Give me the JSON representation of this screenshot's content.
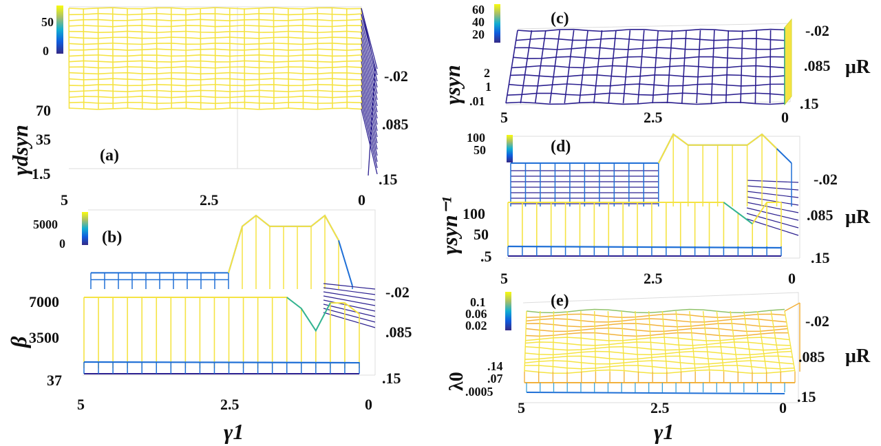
{
  "figure": {
    "xlabel": "γ1",
    "mu_label": "μR"
  },
  "chart_data": [
    {
      "panel": "(a)",
      "type": "mesh3d",
      "zlabel": "γdsyn",
      "x_axis": {
        "label": "γ1",
        "ticks": [
          "5",
          "2.5",
          "0"
        ],
        "range": [
          5,
          0
        ]
      },
      "y_axis": {
        "label": "",
        "ticks": [
          "-.02",
          ".085",
          ".15"
        ],
        "range": [
          -0.02,
          0.15
        ]
      },
      "z_axis": {
        "ticks": [
          "1.5",
          "35",
          "70"
        ],
        "range": [
          1.5,
          70
        ]
      },
      "colorbar": {
        "ticks": [
          "0",
          "50"
        ],
        "range": [
          0,
          60
        ]
      },
      "surface_value": 70,
      "drop_at_gamma0": true
    },
    {
      "panel": "(b)",
      "type": "mesh3d",
      "zlabel": "β",
      "x_axis": {
        "label": "γ1",
        "ticks": [
          "5",
          "2.5",
          "0"
        ],
        "range": [
          5,
          0
        ]
      },
      "y_axis": {
        "label": "",
        "ticks": [
          "-.02",
          ".085",
          ".15"
        ],
        "range": [
          -0.02,
          0.15
        ]
      },
      "z_axis": {
        "ticks": [
          "37",
          "3500",
          "7000"
        ],
        "range": [
          37,
          7000
        ]
      },
      "colorbar": {
        "ticks": [
          "0",
          "5000"
        ],
        "range": [
          0,
          6000
        ]
      },
      "front_row": [
        7000,
        7000,
        7000,
        7000,
        7000,
        7000,
        7000,
        7000,
        7000,
        7000,
        7000,
        7000,
        7000,
        7000,
        7000,
        6000,
        4000,
        6500,
        6500,
        5500
      ],
      "back_row": [
        1500,
        1500,
        1500,
        1500,
        1500,
        1500,
        1500,
        1500,
        1500,
        1500,
        1500,
        5800,
        6800,
        5800,
        5800,
        5800,
        5800,
        6800,
        4500,
        300
      ]
    },
    {
      "panel": "(c)",
      "type": "mesh3d",
      "zlabel": "γsyn",
      "x_axis": {
        "label": "",
        "ticks": [
          "5",
          "2.5",
          "0"
        ],
        "range": [
          5,
          0
        ]
      },
      "y_axis": {
        "label": "μR",
        "ticks": [
          "-.02",
          ".085",
          ".15"
        ],
        "range": [
          -0.02,
          0.15
        ]
      },
      "z_axis": {
        "ticks": [
          ".01",
          "1",
          "2"
        ],
        "range": [
          0.01,
          2
        ]
      },
      "colorbar": {
        "ticks": [
          "20",
          "40",
          "60"
        ],
        "range": [
          10,
          65
        ]
      },
      "spike_at_gamma0": true
    },
    {
      "panel": "(d)",
      "type": "mesh3d",
      "zlabel": "γsyn⁻¹",
      "x_axis": {
        "label": "",
        "ticks": [
          "5",
          "2.5",
          "0"
        ],
        "range": [
          5,
          0
        ]
      },
      "y_axis": {
        "label": "μR",
        "ticks": [
          "-.02",
          ".085",
          ".15"
        ],
        "range": [
          -0.02,
          0.15
        ]
      },
      "z_axis": {
        "ticks": [
          ".5",
          "50",
          "100"
        ],
        "range": [
          0.5,
          100
        ]
      },
      "colorbar": {
        "ticks": [
          "50",
          "100"
        ],
        "range": [
          0,
          110
        ]
      }
    },
    {
      "panel": "(e)",
      "type": "mesh3d",
      "zlabel": "λ0",
      "x_axis": {
        "label": "γ1",
        "ticks": [
          "5",
          "2.5",
          "0"
        ],
        "range": [
          5,
          0
        ]
      },
      "y_axis": {
        "label": "μR",
        "ticks": [
          "-.02",
          ".085",
          ".15"
        ],
        "range": [
          -0.02,
          0.15
        ]
      },
      "z_axis": {
        "ticks": [
          ".0005",
          ".07",
          ".14"
        ],
        "range": [
          0.0005,
          0.14
        ]
      },
      "colorbar": {
        "ticks": [
          "0.02",
          "0.06",
          "0.1"
        ],
        "range": [
          0.01,
          0.12
        ]
      }
    }
  ],
  "colors": {
    "yellow": "#f5e342",
    "blue": "#1f6fd6",
    "navy": "#2b1f8f",
    "teal": "#2fb39a",
    "orange": "#f2b13c"
  }
}
